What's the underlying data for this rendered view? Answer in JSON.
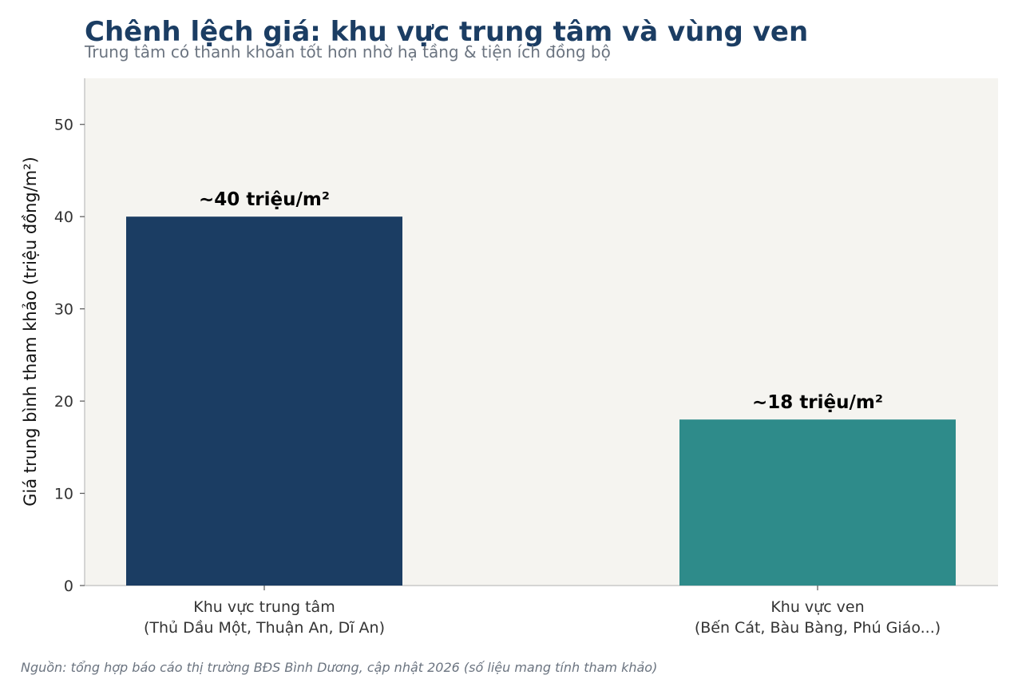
{
  "header": {
    "title": "Chênh lệch giá: khu vực trung tâm và vùng ven",
    "subtitle": "Trung tâm có thanh khoản tốt hơn nhờ hạ tầng & tiện ích đồng bộ"
  },
  "footer": {
    "source": "Nguồn: tổng hợp báo cáo thị trường BĐS Bình Dương, cập nhật 2026 (số liệu mang tính tham khảo)"
  },
  "chart_data": {
    "type": "bar",
    "title": "Chênh lệch giá: khu vực trung tâm và vùng ven",
    "subtitle": "Trung tâm có thanh khoản tốt hơn nhờ hạ tầng & tiện ích đồng bộ",
    "xlabel": "",
    "ylabel": "Giá trung bình tham khảo (triệu đồng/m²)",
    "categories": [
      [
        "Khu vực trung tâm",
        "(Thủ Dầu Một, Thuận An, Dĩ An)"
      ],
      [
        "Khu vực ven",
        "(Bến Cát, Bàu Bàng, Phú Giáo...)"
      ]
    ],
    "values": [
      40,
      18
    ],
    "data_labels": [
      "~40 triệu/m²",
      "~18 triệu/m²"
    ],
    "colors": [
      "#1b3d63",
      "#2e8b8a"
    ],
    "ylim": [
      0,
      55
    ],
    "yticks": [
      0,
      10,
      20,
      30,
      40,
      50
    ],
    "grid": false,
    "plot_background": "#f5f4f0"
  }
}
